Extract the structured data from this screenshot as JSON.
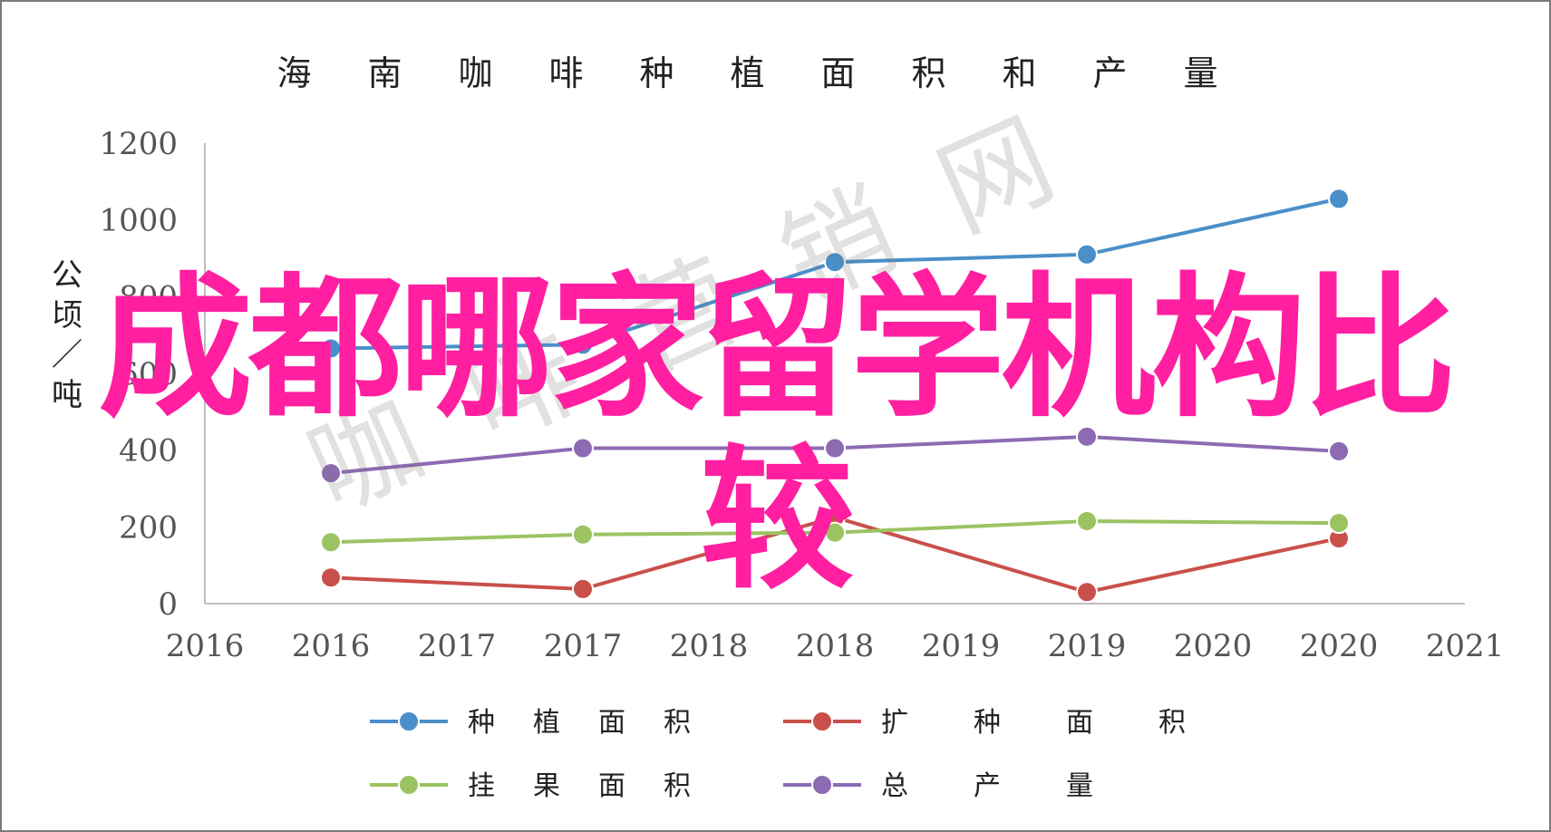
{
  "chart_data": {
    "type": "line",
    "title": "海南咖啡种植面积和产量",
    "ylabel": "公顷／吨",
    "ylim": [
      0,
      1200
    ],
    "yticks": [
      0,
      200,
      400,
      600,
      800,
      1000,
      1200
    ],
    "xlim": [
      2016,
      2021
    ],
    "xtick_labels": [
      "2016",
      "2016",
      "2017",
      "2017",
      "2018",
      "2018",
      "2019",
      "2019",
      "2020",
      "2020",
      "2021"
    ],
    "x": [
      2016.5,
      2017.5,
      2018.5,
      2019.5,
      2020.5
    ],
    "series": [
      {
        "name": "种植面积",
        "color": "#4a8fc9",
        "values": [
          665,
          675,
          890,
          910,
          1055
        ]
      },
      {
        "name": "扩种面积",
        "color": "#c9504a",
        "values": [
          68,
          38,
          225,
          30,
          170
        ]
      },
      {
        "name": "挂果面积",
        "color": "#9bc362",
        "values": [
          160,
          180,
          185,
          215,
          210
        ]
      },
      {
        "name": "总产量",
        "color": "#8c6bb3",
        "values": [
          340,
          405,
          405,
          435,
          397
        ]
      }
    ],
    "grid": false,
    "legend": "bottom"
  },
  "overlay": {
    "line1": "成都哪家留学机构比",
    "line2": "较"
  }
}
